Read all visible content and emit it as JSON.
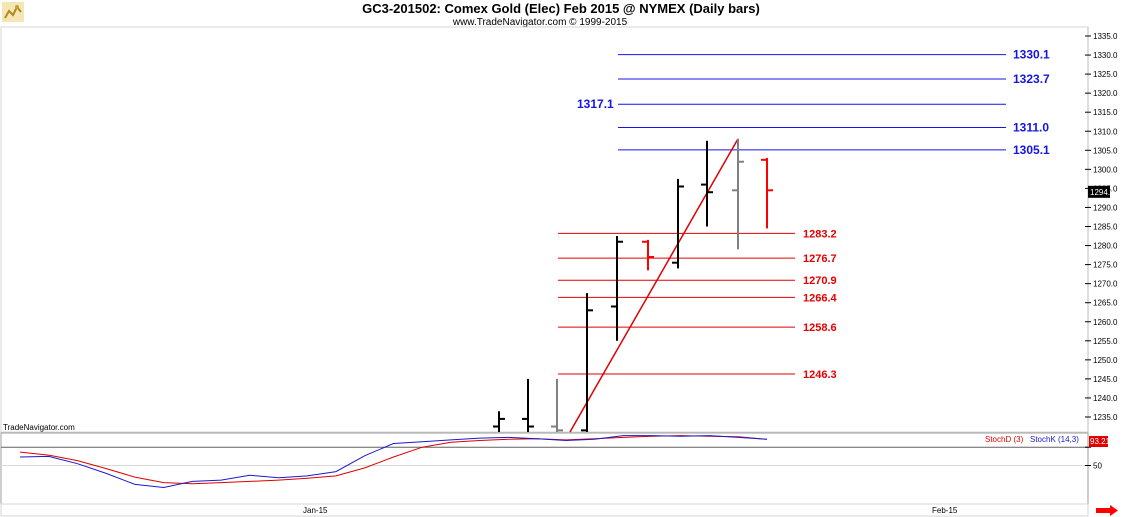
{
  "header": {
    "title": "GC3-201502:  Comex Gold (Elec) Feb 2015 @ NYMEX  (Daily bars)",
    "subtitle": "www.TradeNavigator.com © 1999-2015",
    "watermark": "TradeNavigator.com",
    "logo_icon": "trading-bull-icon"
  },
  "chart_data": [
    {
      "type": "ohlc",
      "ylim": [
        1230,
        1338
      ],
      "yticks": [
        1235,
        1240,
        1245,
        1250,
        1255,
        1260,
        1265,
        1270,
        1275,
        1280,
        1285,
        1290,
        1295,
        1300,
        1305,
        1310,
        1315,
        1320,
        1325,
        1330,
        1335
      ],
      "ytick_labels": [
        "1235.0",
        "1240.0",
        "1245.0",
        "1250.0",
        "1255.0",
        "1260.0",
        "1265.0",
        "1270.0",
        "1275.0",
        "1280.0",
        "1285.0",
        "1290.0",
        "1295.0",
        "1300.0",
        "1305.0",
        "1310.0",
        "1315.0",
        "1320.0",
        "1325.0",
        "1330.0",
        "1335.0"
      ],
      "last_price_label": "1294.1",
      "x_labels": [
        "Jan-15",
        "Feb-15"
      ],
      "bars": [
        {
          "o": 1232.5,
          "h": 1236.5,
          "l": 1230.0,
          "c": 1234.5,
          "color": "#000000"
        },
        {
          "o": 1234.5,
          "h": 1245.0,
          "l": 1230.0,
          "c": 1232.5,
          "color": "#000000"
        },
        {
          "o": 1232.5,
          "h": 1245.0,
          "l": 1230.0,
          "c": 1231.5,
          "color": "#808080"
        },
        {
          "o": 1231.5,
          "h": 1267.5,
          "l": 1230.0,
          "c": 1263.0,
          "color": "#000000"
        },
        {
          "o": 1264.0,
          "h": 1282.5,
          "l": 1255.0,
          "c": 1281.0,
          "color": "#000000"
        },
        {
          "o": 1281.0,
          "h": 1281.5,
          "l": 1273.5,
          "c": 1277.0,
          "color": "#ff0000"
        },
        {
          "o": 1275.5,
          "h": 1297.5,
          "l": 1274.0,
          "c": 1295.5,
          "color": "#000000"
        },
        {
          "o": 1296.0,
          "h": 1307.5,
          "l": 1285.0,
          "c": 1294.0,
          "color": "#000000"
        },
        {
          "o": 1294.5,
          "h": 1308.0,
          "l": 1279.0,
          "c": 1302.0,
          "color": "#808080"
        },
        {
          "o": 1302.5,
          "h": 1303.0,
          "l": 1284.5,
          "c": 1294.5,
          "color": "#ff0000"
        }
      ],
      "trendline": {
        "from": 1230.0,
        "to": 1308.0,
        "color": "#e00000"
      },
      "levels_blue": [
        {
          "value": 1330.1,
          "label": "1330.1",
          "label_side": "right"
        },
        {
          "value": 1323.7,
          "label": "1323.7",
          "label_side": "right"
        },
        {
          "value": 1317.1,
          "label": "1317.1",
          "label_side": "left"
        },
        {
          "value": 1311.0,
          "label": "1311.0",
          "label_side": "right"
        },
        {
          "value": 1305.1,
          "label": "1305.1",
          "label_side": "right"
        }
      ],
      "levels_red": [
        {
          "value": 1283.2,
          "label": "1283.2"
        },
        {
          "value": 1276.7,
          "label": "1276.7"
        },
        {
          "value": 1270.9,
          "label": "1270.9"
        },
        {
          "value": 1266.4,
          "label": "1266.4"
        },
        {
          "value": 1258.6,
          "label": "1258.6"
        },
        {
          "value": 1246.3,
          "label": "1246.3"
        }
      ]
    },
    {
      "type": "line",
      "title": "",
      "ylim": [
        0,
        100
      ],
      "yticks": [
        50,
        80
      ],
      "ytick_labels": [
        "50",
        ""
      ],
      "reference_line": 80,
      "value_badge": "93.21",
      "series": [
        {
          "name": "StochD (3)",
          "color": "#e00000",
          "values": [
            72,
            67,
            58,
            45,
            31,
            22,
            20,
            22,
            24,
            26,
            29,
            33,
            46,
            64,
            80,
            88,
            91,
            93,
            94,
            92,
            94,
            96,
            98,
            99,
            98,
            97,
            93
          ]
        },
        {
          "name": "StochK (14,3)",
          "color": "#1a1ad0",
          "values": [
            64,
            65,
            53,
            37,
            19,
            14,
            24,
            26,
            34,
            30,
            33,
            40,
            66,
            86,
            89,
            92,
            95,
            96,
            94,
            91,
            93,
            99,
            99,
            98,
            99,
            96,
            93
          ]
        }
      ]
    }
  ],
  "colors": {
    "blue_levels": "#1414e6",
    "red_levels": "#e00000",
    "scroll_arrow": "#ff0000"
  }
}
